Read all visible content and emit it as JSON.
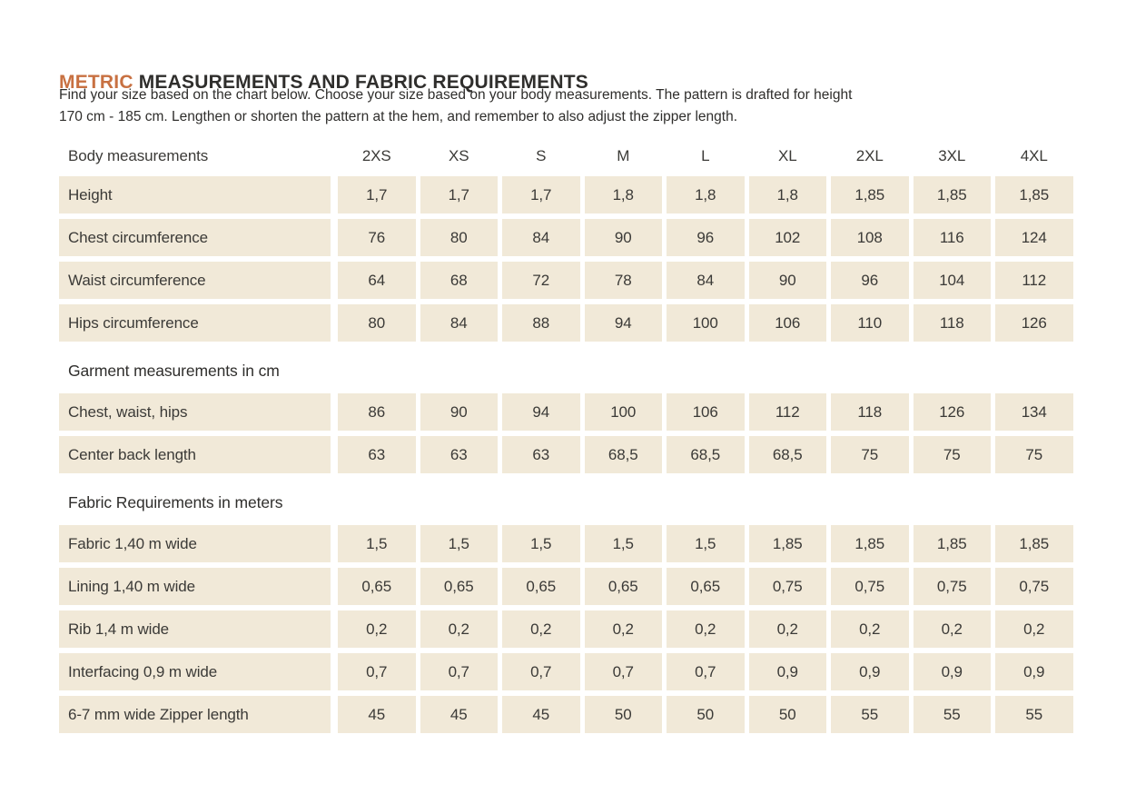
{
  "title": {
    "highlight": "METRIC",
    "rest": " MEASUREMENTS AND FABRIC REQUIREMENTS",
    "highlight_color": "#c87142"
  },
  "intro": {
    "lines": [
      "Find your size based on the chart below. Choose your size based on your body measurements. The pattern is drafted for height",
      "170 cm - 185 cm.  Lengthen or shorten the pattern at the hem, and remember to also adjust the zipper length."
    ]
  },
  "table": {
    "cell_background": "#f1e9d8",
    "header_label": "Body measurements",
    "sizes": [
      "2XS",
      "XS",
      "S",
      "M",
      "L",
      "XL",
      "2XL",
      "3XL",
      "4XL"
    ],
    "sections": [
      {
        "heading": "",
        "rows": [
          {
            "label": "Height",
            "values": [
              "1,7",
              "1,7",
              "1,7",
              "1,8",
              "1,8",
              "1,8",
              "1,85",
              "1,85",
              "1,85"
            ]
          },
          {
            "label": "Chest circumference",
            "values": [
              "76",
              "80",
              "84",
              "90",
              "96",
              "102",
              "108",
              "116",
              "124"
            ]
          },
          {
            "label": "Waist circumference",
            "values": [
              "64",
              "68",
              "72",
              "78",
              "84",
              "90",
              "96",
              "104",
              "112"
            ]
          },
          {
            "label": "Hips circumference",
            "values": [
              "80",
              "84",
              "88",
              "94",
              "100",
              "106",
              "110",
              "118",
              "126"
            ]
          }
        ]
      },
      {
        "heading": "Garment measurements in cm",
        "rows": [
          {
            "label": "Chest, waist, hips",
            "values": [
              "86",
              "90",
              "94",
              "100",
              "106",
              "112",
              "118",
              "126",
              "134"
            ]
          },
          {
            "label": "Center back length",
            "values": [
              "63",
              "63",
              "63",
              "68,5",
              "68,5",
              "68,5",
              "75",
              "75",
              "75"
            ]
          }
        ]
      },
      {
        "heading": "Fabric Requirements in meters",
        "rows": [
          {
            "label": "Fabric 1,40 m wide",
            "values": [
              "1,5",
              "1,5",
              "1,5",
              "1,5",
              "1,5",
              "1,85",
              "1,85",
              "1,85",
              "1,85"
            ]
          },
          {
            "label": "Lining 1,40 m wide",
            "values": [
              "0,65",
              "0,65",
              "0,65",
              "0,65",
              "0,65",
              "0,75",
              "0,75",
              "0,75",
              "0,75"
            ]
          },
          {
            "label": "Rib 1,4 m wide",
            "values": [
              "0,2",
              "0,2",
              "0,2",
              "0,2",
              "0,2",
              "0,2",
              "0,2",
              "0,2",
              "0,2"
            ]
          },
          {
            "label": "Interfacing 0,9 m wide",
            "values": [
              "0,7",
              "0,7",
              "0,7",
              "0,7",
              "0,7",
              "0,9",
              "0,9",
              "0,9",
              "0,9"
            ]
          },
          {
            "label": "6-7 mm wide Zipper length",
            "values": [
              "45",
              "45",
              "45",
              "50",
              "50",
              "50",
              "55",
              "55",
              "55"
            ]
          }
        ]
      }
    ]
  }
}
